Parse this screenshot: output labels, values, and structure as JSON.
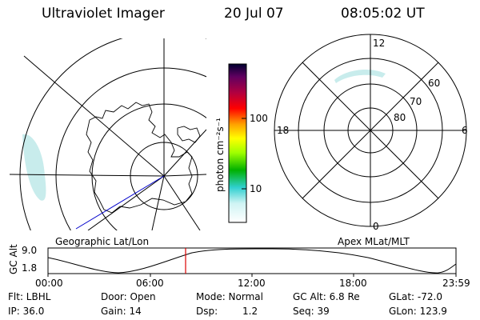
{
  "header": {
    "title": "Ultraviolet Imager",
    "date": "20 Jul 07",
    "time": "08:05:02 UT"
  },
  "geo_map": {
    "label": "Geographic Lat/Lon"
  },
  "apex_map": {
    "label": "Apex MLat/MLT",
    "mlt_labels": {
      "top": "12",
      "left": "18",
      "right": "6",
      "bottom": "0"
    },
    "lat_labels": [
      "60",
      "70",
      "80"
    ]
  },
  "colorbar": {
    "unit_label": "photon cm⁻²s⁻¹",
    "ticks": [
      "100",
      "10"
    ]
  },
  "altitude_plot": {
    "ylabel": "GC Alt",
    "yticks": [
      "9.0",
      "1.8"
    ],
    "xticks": [
      "00:00",
      "06:00",
      "12:00",
      "18:00",
      "23:59"
    ],
    "current_time_marker": "08:05"
  },
  "footer": {
    "flt": "Flt: LBHL",
    "ip": "IP: 36.0",
    "door": "Door: Open",
    "gain": "Gain: 14",
    "mode": "Mode: Normal",
    "dsp_label": "Dsp:",
    "dsp_value": "1.2",
    "gc_alt": "GC Alt: 6.8 Re",
    "seq": "Seq: 39",
    "glat": "GLat: -72.0",
    "glon": "GLon: 123.9"
  },
  "colors": {
    "colorbar_stops": [
      "#ffffff",
      "#d0f4f4",
      "#30d0d0",
      "#00b000",
      "#a0ff00",
      "#ffff00",
      "#ffa000",
      "#ff0000",
      "#b00040",
      "#600060",
      "#000030"
    ],
    "orbit_line": "#0000cc",
    "time_marker": "#dd0000",
    "aurora": "#c8ecec"
  }
}
